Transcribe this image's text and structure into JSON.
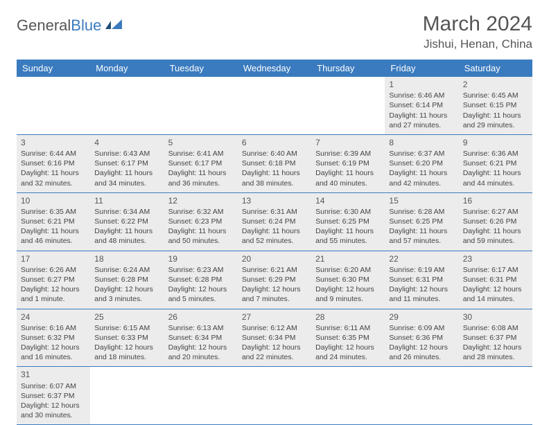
{
  "logo": {
    "text_a": "General",
    "text_b": "Blue"
  },
  "title": "March 2024",
  "location": "Jishui, Henan, China",
  "colors": {
    "header_bg": "#3a7bbf",
    "header_fg": "#ffffff",
    "row_bg": "#ececec",
    "text": "#444444",
    "rule": "#3a7bbf"
  },
  "day_headers": [
    "Sunday",
    "Monday",
    "Tuesday",
    "Wednesday",
    "Thursday",
    "Friday",
    "Saturday"
  ],
  "weeks": [
    [
      null,
      null,
      null,
      null,
      null,
      {
        "n": "1",
        "sr": "Sunrise: 6:46 AM",
        "ss": "Sunset: 6:14 PM",
        "dl": "Daylight: 11 hours and 27 minutes."
      },
      {
        "n": "2",
        "sr": "Sunrise: 6:45 AM",
        "ss": "Sunset: 6:15 PM",
        "dl": "Daylight: 11 hours and 29 minutes."
      }
    ],
    [
      {
        "n": "3",
        "sr": "Sunrise: 6:44 AM",
        "ss": "Sunset: 6:16 PM",
        "dl": "Daylight: 11 hours and 32 minutes."
      },
      {
        "n": "4",
        "sr": "Sunrise: 6:43 AM",
        "ss": "Sunset: 6:17 PM",
        "dl": "Daylight: 11 hours and 34 minutes."
      },
      {
        "n": "5",
        "sr": "Sunrise: 6:41 AM",
        "ss": "Sunset: 6:17 PM",
        "dl": "Daylight: 11 hours and 36 minutes."
      },
      {
        "n": "6",
        "sr": "Sunrise: 6:40 AM",
        "ss": "Sunset: 6:18 PM",
        "dl": "Daylight: 11 hours and 38 minutes."
      },
      {
        "n": "7",
        "sr": "Sunrise: 6:39 AM",
        "ss": "Sunset: 6:19 PM",
        "dl": "Daylight: 11 hours and 40 minutes."
      },
      {
        "n": "8",
        "sr": "Sunrise: 6:37 AM",
        "ss": "Sunset: 6:20 PM",
        "dl": "Daylight: 11 hours and 42 minutes."
      },
      {
        "n": "9",
        "sr": "Sunrise: 6:36 AM",
        "ss": "Sunset: 6:21 PM",
        "dl": "Daylight: 11 hours and 44 minutes."
      }
    ],
    [
      {
        "n": "10",
        "sr": "Sunrise: 6:35 AM",
        "ss": "Sunset: 6:21 PM",
        "dl": "Daylight: 11 hours and 46 minutes."
      },
      {
        "n": "11",
        "sr": "Sunrise: 6:34 AM",
        "ss": "Sunset: 6:22 PM",
        "dl": "Daylight: 11 hours and 48 minutes."
      },
      {
        "n": "12",
        "sr": "Sunrise: 6:32 AM",
        "ss": "Sunset: 6:23 PM",
        "dl": "Daylight: 11 hours and 50 minutes."
      },
      {
        "n": "13",
        "sr": "Sunrise: 6:31 AM",
        "ss": "Sunset: 6:24 PM",
        "dl": "Daylight: 11 hours and 52 minutes."
      },
      {
        "n": "14",
        "sr": "Sunrise: 6:30 AM",
        "ss": "Sunset: 6:25 PM",
        "dl": "Daylight: 11 hours and 55 minutes."
      },
      {
        "n": "15",
        "sr": "Sunrise: 6:28 AM",
        "ss": "Sunset: 6:25 PM",
        "dl": "Daylight: 11 hours and 57 minutes."
      },
      {
        "n": "16",
        "sr": "Sunrise: 6:27 AM",
        "ss": "Sunset: 6:26 PM",
        "dl": "Daylight: 11 hours and 59 minutes."
      }
    ],
    [
      {
        "n": "17",
        "sr": "Sunrise: 6:26 AM",
        "ss": "Sunset: 6:27 PM",
        "dl": "Daylight: 12 hours and 1 minute."
      },
      {
        "n": "18",
        "sr": "Sunrise: 6:24 AM",
        "ss": "Sunset: 6:28 PM",
        "dl": "Daylight: 12 hours and 3 minutes."
      },
      {
        "n": "19",
        "sr": "Sunrise: 6:23 AM",
        "ss": "Sunset: 6:28 PM",
        "dl": "Daylight: 12 hours and 5 minutes."
      },
      {
        "n": "20",
        "sr": "Sunrise: 6:21 AM",
        "ss": "Sunset: 6:29 PM",
        "dl": "Daylight: 12 hours and 7 minutes."
      },
      {
        "n": "21",
        "sr": "Sunrise: 6:20 AM",
        "ss": "Sunset: 6:30 PM",
        "dl": "Daylight: 12 hours and 9 minutes."
      },
      {
        "n": "22",
        "sr": "Sunrise: 6:19 AM",
        "ss": "Sunset: 6:31 PM",
        "dl": "Daylight: 12 hours and 11 minutes."
      },
      {
        "n": "23",
        "sr": "Sunrise: 6:17 AM",
        "ss": "Sunset: 6:31 PM",
        "dl": "Daylight: 12 hours and 14 minutes."
      }
    ],
    [
      {
        "n": "24",
        "sr": "Sunrise: 6:16 AM",
        "ss": "Sunset: 6:32 PM",
        "dl": "Daylight: 12 hours and 16 minutes."
      },
      {
        "n": "25",
        "sr": "Sunrise: 6:15 AM",
        "ss": "Sunset: 6:33 PM",
        "dl": "Daylight: 12 hours and 18 minutes."
      },
      {
        "n": "26",
        "sr": "Sunrise: 6:13 AM",
        "ss": "Sunset: 6:34 PM",
        "dl": "Daylight: 12 hours and 20 minutes."
      },
      {
        "n": "27",
        "sr": "Sunrise: 6:12 AM",
        "ss": "Sunset: 6:34 PM",
        "dl": "Daylight: 12 hours and 22 minutes."
      },
      {
        "n": "28",
        "sr": "Sunrise: 6:11 AM",
        "ss": "Sunset: 6:35 PM",
        "dl": "Daylight: 12 hours and 24 minutes."
      },
      {
        "n": "29",
        "sr": "Sunrise: 6:09 AM",
        "ss": "Sunset: 6:36 PM",
        "dl": "Daylight: 12 hours and 26 minutes."
      },
      {
        "n": "30",
        "sr": "Sunrise: 6:08 AM",
        "ss": "Sunset: 6:37 PM",
        "dl": "Daylight: 12 hours and 28 minutes."
      }
    ],
    [
      {
        "n": "31",
        "sr": "Sunrise: 6:07 AM",
        "ss": "Sunset: 6:37 PM",
        "dl": "Daylight: 12 hours and 30 minutes."
      },
      null,
      null,
      null,
      null,
      null,
      null
    ]
  ]
}
